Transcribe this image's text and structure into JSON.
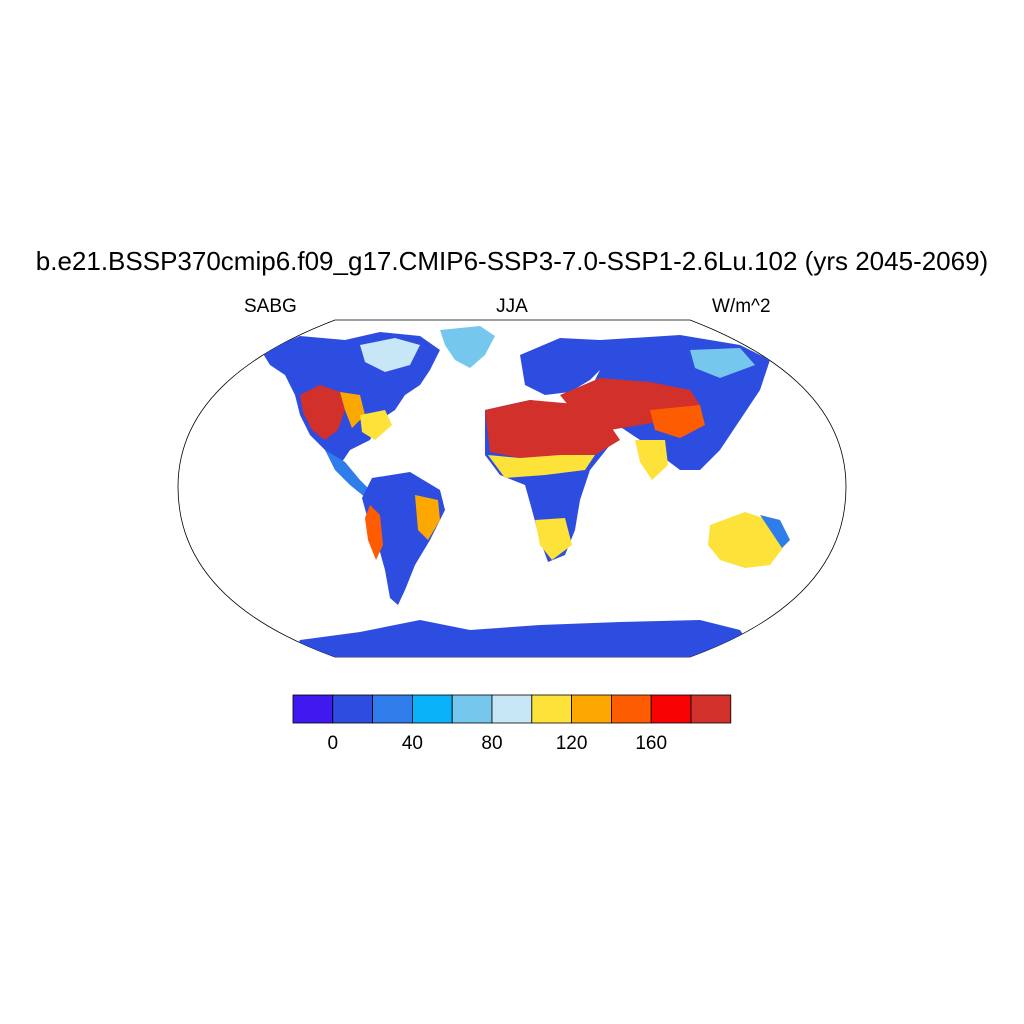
{
  "header": {
    "title": "b.e21.BSSP370cmip6.f09_g17.CMIP6-SSP3-7.0-SSP1-2.6Lu.102 (yrs 2045-2069)",
    "left_label": "SABG",
    "center_label": "JJA",
    "right_label": "W/m^2"
  },
  "map": {
    "projection": "robinson",
    "variable": "SABG",
    "season": "JJA",
    "units": "W/m^2",
    "ocean_fill": "#ffffff",
    "regions": [
      {
        "name": "sahara-arabia",
        "level": "180+"
      },
      {
        "name": "central-asia",
        "level": "180+"
      },
      {
        "name": "western-north-america",
        "level": "160-180"
      },
      {
        "name": "sahel",
        "level": "100-140"
      },
      {
        "name": "australia",
        "level": "100-120"
      },
      {
        "name": "boreal-forests",
        "level": "20-40"
      },
      {
        "name": "amazon",
        "level": "20-40"
      },
      {
        "name": "greenland",
        "level": "60-100"
      },
      {
        "name": "antarctica",
        "level": "0-20"
      }
    ]
  },
  "colorbar": {
    "colors": [
      "#4019f0",
      "#2d4de0",
      "#2f7deb",
      "#0ab2fa",
      "#75c7ee",
      "#c7e6f6",
      "#fde23a",
      "#fda800",
      "#fd5c00",
      "#f80303",
      "#d2302b"
    ],
    "tick_labels": [
      "0",
      "40",
      "80",
      "120",
      "160"
    ],
    "tick_values": [
      0,
      40,
      80,
      120,
      160
    ],
    "levels": [
      0,
      20,
      40,
      60,
      80,
      100,
      120,
      140,
      160,
      180
    ]
  }
}
